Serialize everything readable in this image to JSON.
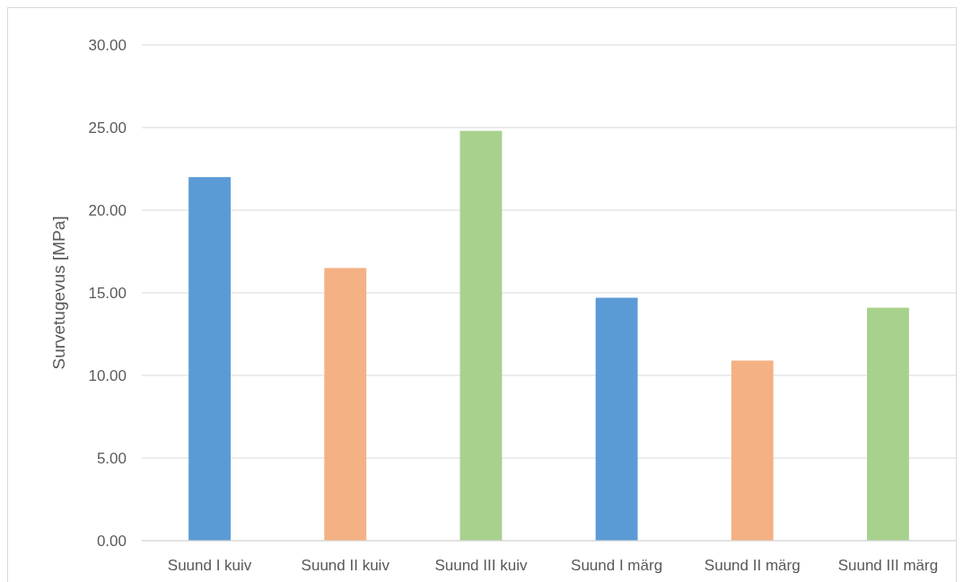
{
  "chart_data": {
    "type": "bar",
    "ylabel": "Survetugevus [MPa]",
    "categories": [
      "Suund I kuiv",
      "Suund II kuiv",
      "Suund III kuiv",
      "Suund I märg",
      "Suund II märg",
      "Suund III märg"
    ],
    "values": [
      22.0,
      16.5,
      24.8,
      14.7,
      10.9,
      14.1
    ],
    "colors": [
      "#5b9bd5",
      "#f4b183",
      "#a9d18e",
      "#5b9bd5",
      "#f4b183",
      "#a9d18e"
    ],
    "ylim": [
      0,
      30
    ],
    "yticks": [
      {
        "value": 0,
        "label": "0.00"
      },
      {
        "value": 5,
        "label": "5.00"
      },
      {
        "value": 10,
        "label": "10.00"
      },
      {
        "value": 15,
        "label": "15.00"
      },
      {
        "value": 20,
        "label": "20.00"
      },
      {
        "value": 25,
        "label": "25.00"
      },
      {
        "value": 30,
        "label": "30.00"
      }
    ],
    "grid": "y"
  }
}
